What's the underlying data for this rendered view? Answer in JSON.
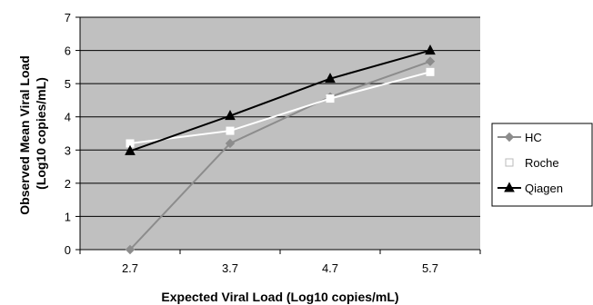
{
  "chart_data": {
    "type": "line",
    "title": "",
    "xlabel": "Expected Viral Load (Log10 copies/mL)",
    "ylabel_lines": [
      "Observed Mean Viral Load",
      "(Log10 copies/mL)"
    ],
    "categories": [
      "2.7",
      "3.7",
      "4.7",
      "5.7"
    ],
    "ylim": [
      0,
      7
    ],
    "yticks": [
      "0",
      "1",
      "2",
      "3",
      "4",
      "5",
      "6",
      "7"
    ],
    "grid": true,
    "legend_position": "right",
    "series": [
      {
        "name": "HC",
        "values": [
          0.0,
          3.2,
          4.6,
          5.67
        ],
        "color": "#8c8c8c",
        "marker": "diamond"
      },
      {
        "name": "Roche",
        "values": [
          3.2,
          3.58,
          4.55,
          5.35
        ],
        "color": "#ffffff",
        "marker": "square"
      },
      {
        "name": "Qiagen",
        "values": [
          2.97,
          4.03,
          5.15,
          6.0
        ],
        "color": "#000000",
        "marker": "triangle"
      }
    ],
    "colors": {
      "plot_background": "#c0c0c0",
      "gridline": "#000000"
    }
  }
}
